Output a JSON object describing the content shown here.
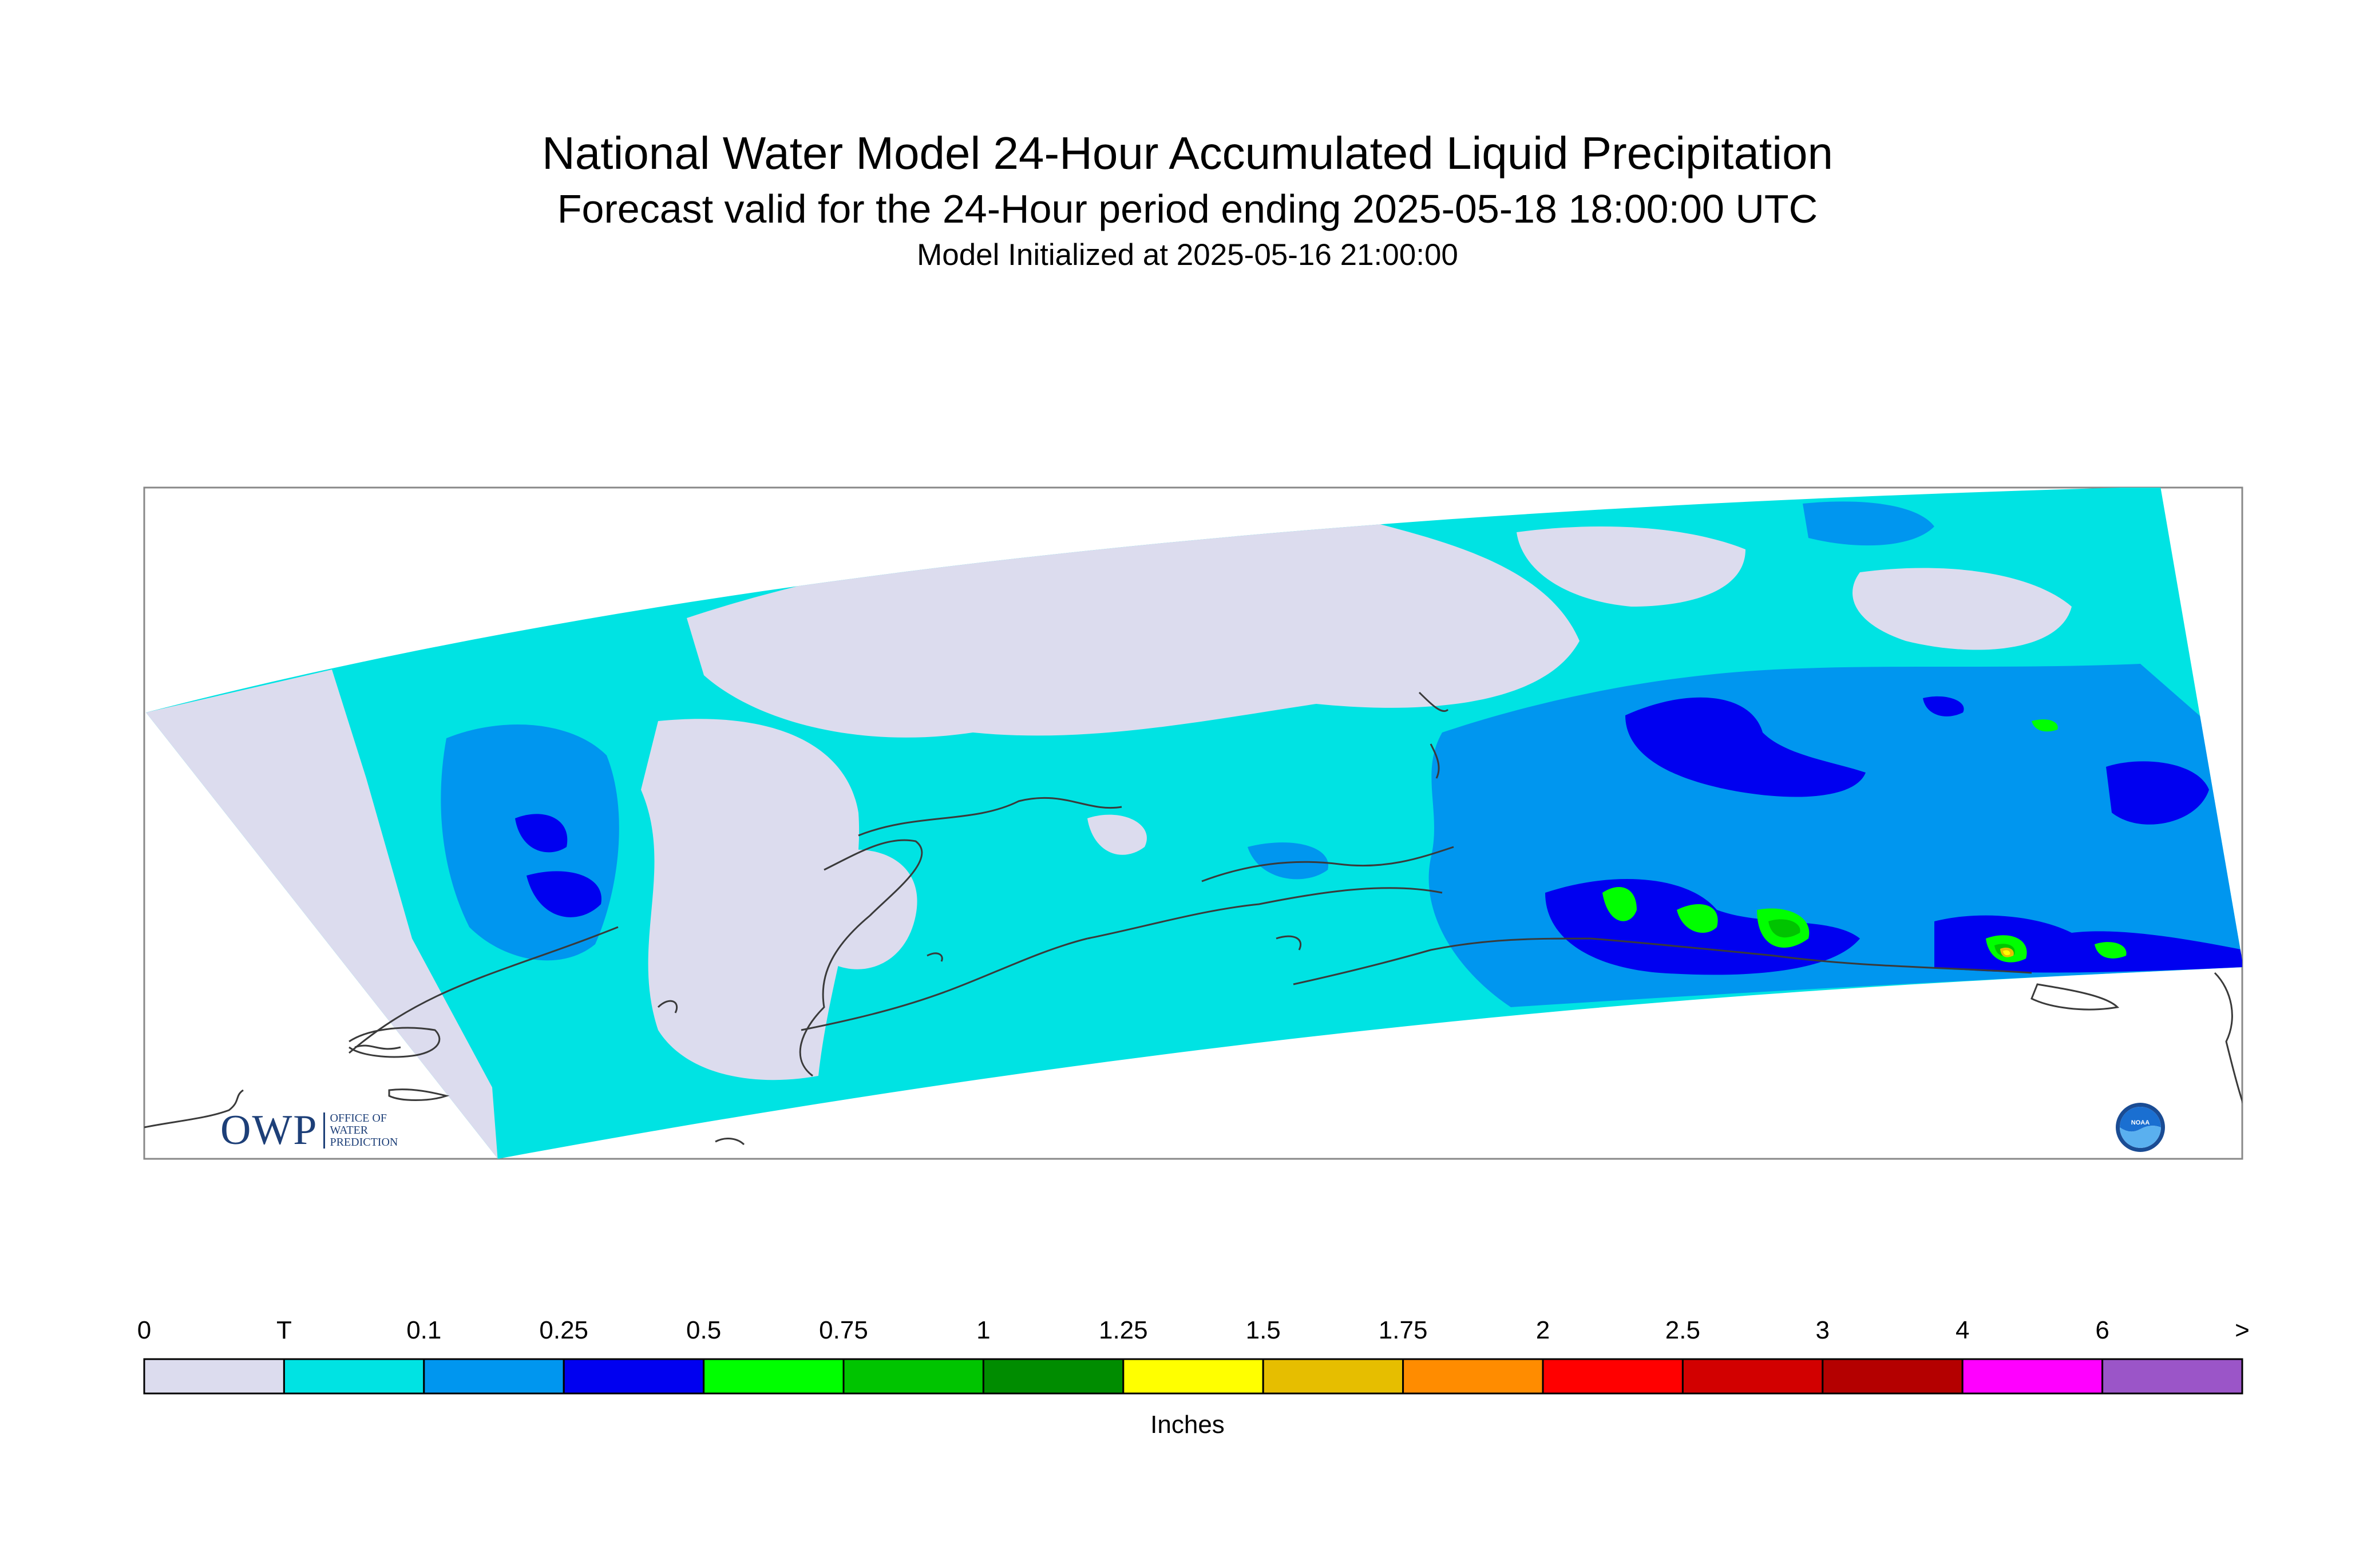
{
  "title": "National Water Model 24-Hour Accumulated Liquid Precipitation",
  "subtitle": "Forecast valid for the 24-Hour period ending 2025-05-18 18:00:00 UTC",
  "init_line": "Model Initialized at 2025-05-16 21:00:00",
  "units": "Inches",
  "colorbar": {
    "labels": [
      "0",
      "T",
      "0.1",
      "0.25",
      "0.5",
      "0.75",
      "1",
      "1.25",
      "1.5",
      "1.75",
      "2",
      "2.5",
      "3",
      "4",
      "6",
      ">"
    ],
    "colors": [
      "#dcdcee",
      "#00e3e3",
      "#0096ef",
      "#0000f0",
      "#00ff00",
      "#00c400",
      "#008c00",
      "#ffff00",
      "#e6be00",
      "#ff8c00",
      "#ff0000",
      "#d20000",
      "#b40000",
      "#ff00ff",
      "#9b55c8"
    ]
  },
  "map_colors": {
    "zero": "#dcdcee",
    "trace": "#00e3e3",
    "p01": "#0096ef",
    "p025": "#0000f0",
    "p05": "#00ff00",
    "p075": "#00c400",
    "p15": "#e6be00",
    "p125": "#ffff00",
    "coast": "#3a3a3a",
    "frame": "#888888"
  },
  "logos": {
    "owp_mark": "OWP",
    "owp_lines": [
      "OFFICE OF",
      "WATER",
      "PREDICTION"
    ],
    "noaa_text": "NOAA"
  }
}
